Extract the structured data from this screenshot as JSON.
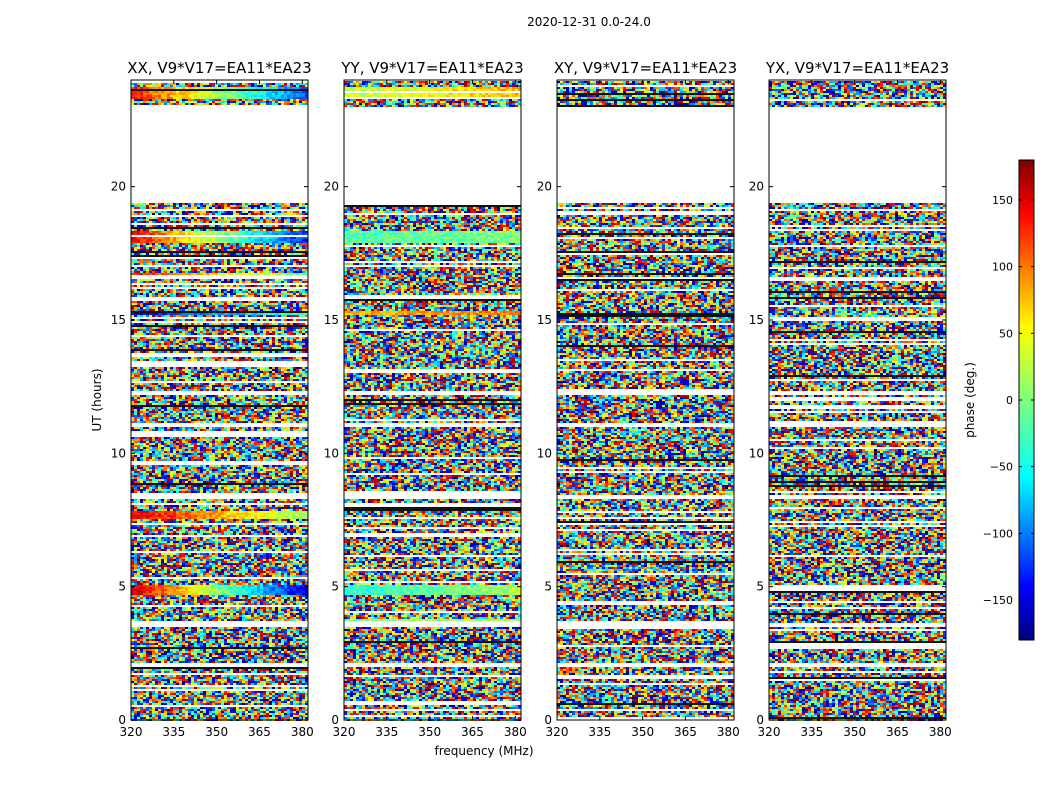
{
  "suptitle": "2020-12-31 0.0-24.0",
  "chart_data": {
    "type": "heatmap",
    "title": "2020-12-31 0.0-24.0",
    "xlabel": "frequency (MHz)",
    "ylabel": "UT (hours)",
    "xlim": [
      320,
      382
    ],
    "ylim": [
      0,
      24
    ],
    "xticks": [
      320,
      335,
      350,
      365,
      380
    ],
    "yticks": [
      0,
      5,
      10,
      15,
      20
    ],
    "colormap": "jet",
    "colorbar": {
      "label": "phase (deg.)",
      "range": [
        -180,
        180
      ],
      "ticks": [
        -150,
        -100,
        -50,
        0,
        50,
        100,
        150
      ],
      "colors": [
        "#00007f",
        "#0000ff",
        "#007fff",
        "#00ffff",
        "#7fff7f",
        "#ffff00",
        "#ff7f00",
        "#ff0000",
        "#7f0000"
      ]
    },
    "panels": [
      {
        "title": "XX, V9*V17=EA11*EA23",
        "pol": "XX",
        "baseline": "V9*V17=EA11*EA23"
      },
      {
        "title": "YY, V9*V17=EA11*EA23",
        "pol": "YY",
        "baseline": "V9*V17=EA11*EA23"
      },
      {
        "title": "XY, V9*V17=EA11*EA23",
        "pol": "XY",
        "baseline": "V9*V17=EA11*EA23"
      },
      {
        "title": "YX, V9*V17=EA11*EA23",
        "pol": "YX",
        "baseline": "V9*V17=EA11*EA23"
      }
    ],
    "data_gaps_hours": [
      [
        2.05,
        2.2
      ],
      [
        3.55,
        3.65
      ],
      [
        8.35,
        8.5
      ],
      [
        11.05,
        11.2
      ],
      [
        12.2,
        12.35
      ],
      [
        19.45,
        23.05
      ]
    ]
  }
}
